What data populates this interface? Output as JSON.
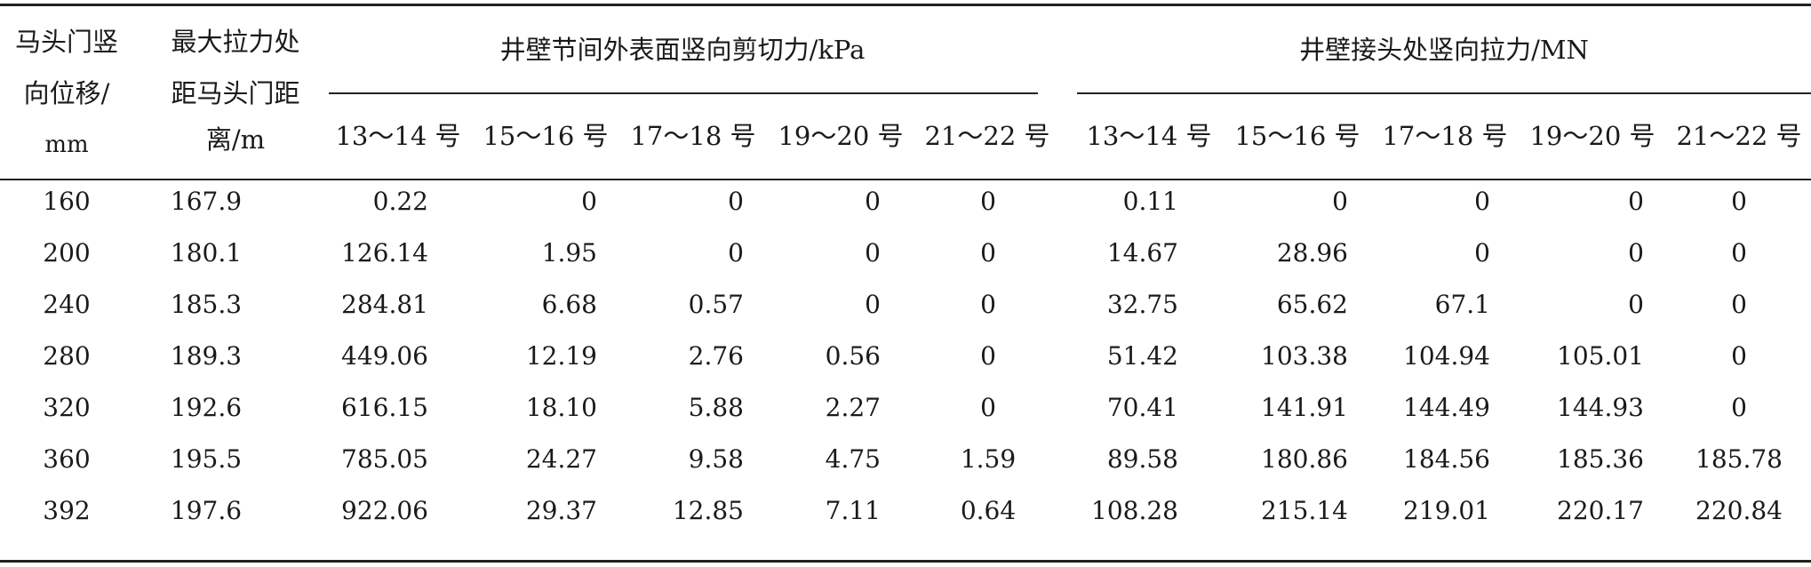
{
  "table": {
    "col1_header": [
      "马头门竖",
      "向位移/",
      "mm"
    ],
    "col2_header": [
      "最大拉力处",
      "距马头门距",
      "离/m"
    ],
    "group1_header": "井壁节间外表面竖向剪切力/kPa",
    "group2_header": "井壁接头处竖向拉力/MN",
    "sub_headers": [
      "13～14 号",
      "15～16 号",
      "17～18 号",
      "19～20 号",
      "21～22 号",
      "13～14 号",
      "15～16 号",
      "17～18 号",
      "19～20 号",
      "21～22 号"
    ],
    "rows": [
      [
        "160",
        "167.9",
        "0.22",
        "0",
        "0",
        "0",
        "0",
        "0.11",
        "0",
        "0",
        "0",
        "0"
      ],
      [
        "200",
        "180.1",
        "126.14",
        "1.95",
        "0",
        "0",
        "0",
        "14.67",
        "28.96",
        "0",
        "0",
        "0"
      ],
      [
        "240",
        "185.3",
        "284.81",
        "6.68",
        "0.57",
        "0",
        "0",
        "32.75",
        "65.62",
        "67.1",
        "0",
        "0"
      ],
      [
        "280",
        "189.3",
        "449.06",
        "12.19",
        "2.76",
        "0.56",
        "0",
        "51.42",
        "103.38",
        "104.94",
        "105.01",
        "0"
      ],
      [
        "320",
        "192.6",
        "616.15",
        "18.10",
        "5.88",
        "2.27",
        "0",
        "70.41",
        "141.91",
        "144.49",
        "144.93",
        "0"
      ],
      [
        "360",
        "195.5",
        "785.05",
        "24.27",
        "9.58",
        "4.75",
        "1.59",
        "89.58",
        "180.86",
        "184.56",
        "185.36",
        "185.78"
      ],
      [
        "392",
        "197.6",
        "922.06",
        "29.37",
        "12.85",
        "7.11",
        "0.64",
        "108.28",
        "215.14",
        "219.01",
        "220.17",
        "220.84"
      ]
    ]
  }
}
